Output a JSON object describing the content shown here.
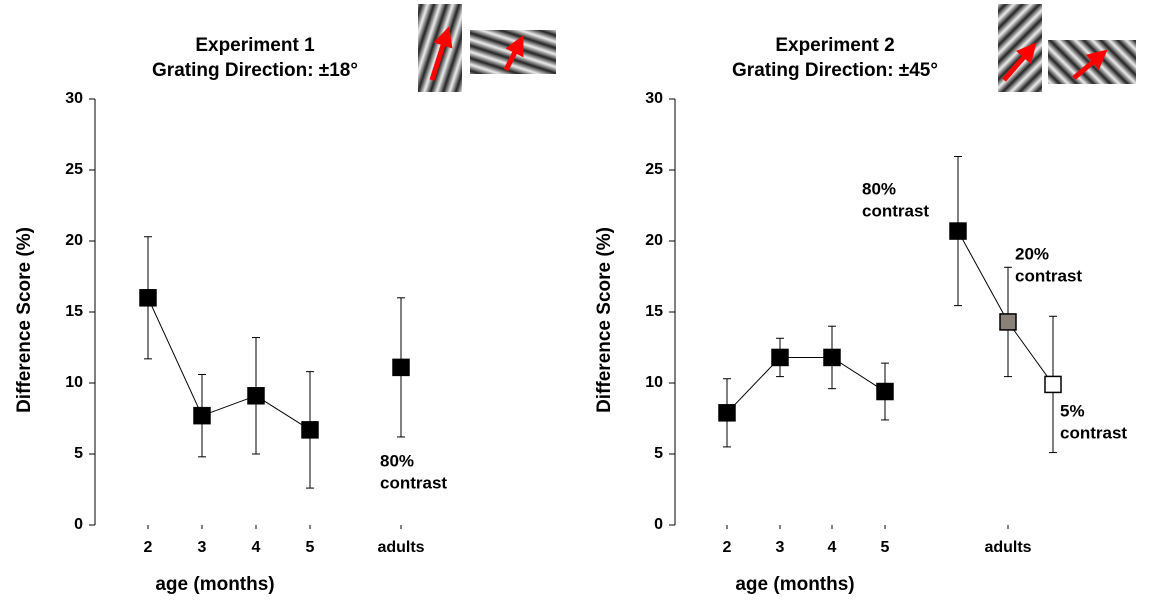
{
  "chart_data": [
    {
      "type": "line",
      "title": "Experiment 1",
      "subtitle": "Grating Direction: ±18°",
      "x_label": "age (months)",
      "y_label": "Difference Score (%)",
      "ylim": [
        0,
        30
      ],
      "yticks": [
        0,
        5,
        10,
        15,
        20,
        25,
        30
      ],
      "infants": {
        "categories": [
          "2",
          "3",
          "4",
          "5"
        ],
        "values": [
          16,
          7.7,
          9.1,
          6.7
        ],
        "errors": [
          4.3,
          2.9,
          4.1,
          4.1
        ]
      },
      "adults": {
        "category": "adults",
        "values": [
          11.1
        ],
        "errors": [
          4.9
        ],
        "colors": [
          "#000000"
        ],
        "labels": [
          [
            "80%",
            "contrast"
          ]
        ]
      }
    },
    {
      "type": "line",
      "title": "Experiment 2",
      "subtitle": "Grating Direction: ±45°",
      "x_label": "age (months)",
      "y_label": "Difference Score (%)",
      "ylim": [
        0,
        30
      ],
      "yticks": [
        0,
        5,
        10,
        15,
        20,
        25,
        30
      ],
      "infants": {
        "categories": [
          "2",
          "3",
          "4",
          "5"
        ],
        "values": [
          7.9,
          11.8,
          11.8,
          9.4
        ],
        "errors": [
          2.4,
          1.35,
          2.2,
          2
        ]
      },
      "adults": {
        "category": "adults",
        "values": [
          20.7,
          14.3,
          9.9
        ],
        "errors": [
          5.25,
          3.85,
          4.8
        ],
        "colors": [
          "#000000",
          "#8a8278",
          "#ffffff"
        ],
        "labels": [
          [
            "80%",
            "contrast"
          ],
          [
            "20%",
            "contrast"
          ],
          [
            "5%",
            "contrast"
          ]
        ]
      }
    }
  ]
}
